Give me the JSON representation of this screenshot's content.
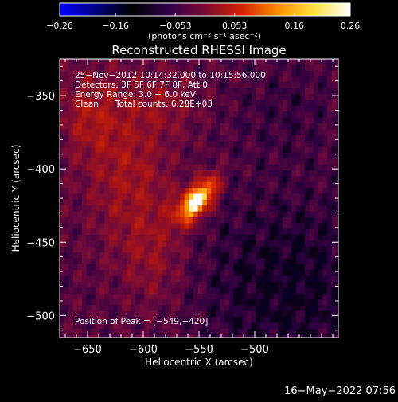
{
  "chart_data": {
    "type": "heatmap",
    "title": "Reconstructed RHESSI Image",
    "xlabel": "Heliocentric X (arcsec)",
    "ylabel": "Heliocentric Y (arcsec)",
    "xlim": [
      -675,
      -425
    ],
    "ylim": [
      -515,
      -325
    ],
    "x_ticks": [
      -650,
      -600,
      -550,
      -500
    ],
    "x_tick_labels": [
      "−650",
      "−600",
      "−550",
      "−500"
    ],
    "y_ticks": [
      -350,
      -400,
      -450,
      -500
    ],
    "y_tick_labels": [
      "−350",
      "−400",
      "−450",
      "−500"
    ],
    "colorbar": {
      "range": [
        -0.26,
        0.26
      ],
      "ticks": [
        -0.26,
        -0.16,
        -0.053,
        0.053,
        0.16,
        0.26
      ],
      "tick_labels": [
        "−0.26",
        "−0.16",
        "−0.053",
        "0.053",
        "0.16",
        "0.26"
      ],
      "unit_label": "(photons cm⁻² s⁻¹ asec⁻²)",
      "colors": [
        "#0000ff",
        "#000080",
        "#000000",
        "#30004a",
        "#7a0a30",
        "#d32000",
        "#ff8c00",
        "#ffe040",
        "#ffffff"
      ]
    },
    "annotations": {
      "time_range": "25−Nov−2012 10:14:32.000 to 10:15:56.000",
      "detectors": "Detectors: 3F 5F 6F 7F 8F, Att 0",
      "energy_range": "Energy Range: 3.0 − 6.0 keV",
      "method": "Clean",
      "total_counts": "Total counts: 6.28E+03",
      "peak_position": "Position of Peak = [−549,−420]"
    },
    "peak": {
      "x": -549,
      "y": -420
    },
    "pixel_size_arcsec": 4
  },
  "footer": {
    "timestamp": "16−May−2022 07:56"
  }
}
